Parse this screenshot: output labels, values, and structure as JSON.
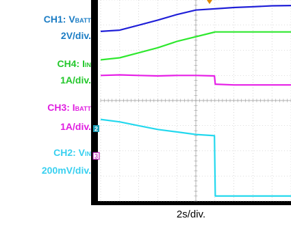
{
  "channels": [
    {
      "id": "CH1",
      "name": "CH1: V",
      "sub": "BATT",
      "scale": "2V/div.",
      "color": "#1a7cc4",
      "trace_color": "#1f1fd8"
    },
    {
      "id": "CH4",
      "name": "CH4: I",
      "sub": "IN",
      "scale": "1A/div.",
      "color": "#22c72a",
      "trace_color": "#2ee82e"
    },
    {
      "id": "CH3",
      "name": "CH3: I",
      "sub": "BATT",
      "scale": "1A/div.",
      "color": "#e01ee0",
      "trace_color": "#e61ee6"
    },
    {
      "id": "CH2",
      "name": "CH2: V",
      "sub": "IN",
      "scale": "200mV/div.",
      "color": "#38d0f0",
      "trace_color": "#22d8ee"
    }
  ],
  "markers": {
    "ch2": "2",
    "ch3": "3"
  },
  "xaxis": {
    "scale": "2s/div."
  },
  "chart_data": {
    "type": "line",
    "title": "",
    "xlabel": "2s/div.",
    "ylabel": "",
    "grid": true,
    "divisions": {
      "x": 10,
      "y": 8
    },
    "xlim": [
      0,
      10
    ],
    "ylim": [
      0,
      8
    ],
    "series": [
      {
        "name": "CH1: VBATT",
        "x": [
          0,
          1,
          2,
          3,
          4,
          5,
          6,
          7,
          8,
          9,
          10
        ],
        "y": [
          6.75,
          6.8,
          7.0,
          7.2,
          7.42,
          7.6,
          7.65,
          7.7,
          7.73,
          7.77,
          7.78
        ]
      },
      {
        "name": "CH4: IIN",
        "x": [
          0,
          1,
          2,
          3,
          4,
          5.98,
          6,
          7,
          8,
          9,
          10
        ],
        "y": [
          5.62,
          5.7,
          5.9,
          6.1,
          6.35,
          6.72,
          6.73,
          6.73,
          6.73,
          6.73,
          6.73
        ]
      },
      {
        "name": "CH3: IBATT",
        "x": [
          0,
          1,
          2,
          3,
          4,
          5,
          5.98,
          6.02,
          7,
          8,
          9,
          10
        ],
        "y": [
          5.0,
          5.02,
          5.0,
          4.98,
          5.0,
          5.0,
          4.98,
          4.65,
          4.62,
          4.62,
          4.62,
          4.62
        ]
      },
      {
        "name": "CH2: VIN",
        "x": [
          0,
          1,
          2,
          3,
          4,
          5,
          5.98,
          6.02,
          7,
          8,
          9,
          10
        ],
        "y": [
          3.25,
          3.15,
          3.0,
          2.85,
          2.75,
          2.65,
          2.6,
          0.2,
          0.2,
          0.2,
          0.2,
          0.2
        ]
      }
    ]
  }
}
